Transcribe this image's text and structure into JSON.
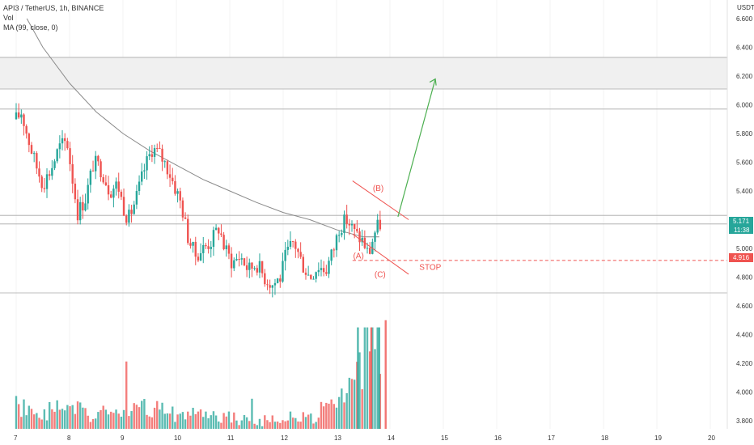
{
  "legend": {
    "symbol": "API3 / TetherUS, 1h, BINANCE",
    "vol": "Vol",
    "ma": "MA (99, close, 0)"
  },
  "axis": {
    "currency": "USDT",
    "last_price": "5.171",
    "countdown": "11:38",
    "stop_price": "4.916"
  },
  "annotations": {
    "wave_a": "(A)",
    "wave_b": "(B)",
    "wave_c": "(C)",
    "stop": "STOP"
  },
  "colors": {
    "up": "#26a69a",
    "down": "#ef5350",
    "ma": "#8a8a8a",
    "arrow": "#4caf50",
    "stop": "#ef5350"
  },
  "chart_data": {
    "type": "candlestick",
    "title": "API3 / TetherUS, 1h, BINANCE",
    "xlabel": "",
    "ylabel": "",
    "ylim": [
      3.7,
      6.7
    ],
    "y_ticks": [
      "6.600",
      "6.400",
      "6.200",
      "6.000",
      "5.800",
      "5.600",
      "5.400",
      "5.200",
      "5.000",
      "4.800",
      "4.600",
      "4.400",
      "4.200",
      "4.000",
      "3.800"
    ],
    "x_ticks": [
      "7",
      "8",
      "9",
      "10",
      "11",
      "12",
      "13",
      "14",
      "15",
      "16",
      "17",
      "18",
      "19",
      "20"
    ],
    "price_path": [
      [
        7.0,
        5.9
      ],
      [
        7.1,
        5.95
      ],
      [
        7.2,
        5.8
      ],
      [
        7.35,
        5.6
      ],
      [
        7.5,
        5.45
      ],
      [
        7.65,
        5.55
      ],
      [
        7.8,
        5.7
      ],
      [
        7.95,
        5.75
      ],
      [
        8.05,
        5.5
      ],
      [
        8.15,
        5.25
      ],
      [
        8.3,
        5.35
      ],
      [
        8.45,
        5.6
      ],
      [
        8.6,
        5.55
      ],
      [
        8.75,
        5.4
      ],
      [
        8.9,
        5.45
      ],
      [
        9.0,
        5.3
      ],
      [
        9.1,
        5.2
      ],
      [
        9.25,
        5.35
      ],
      [
        9.4,
        5.55
      ],
      [
        9.55,
        5.7
      ],
      [
        9.7,
        5.65
      ],
      [
        9.85,
        5.55
      ],
      [
        10.0,
        5.4
      ],
      [
        10.1,
        5.3
      ],
      [
        10.2,
        5.1
      ],
      [
        10.35,
        4.95
      ],
      [
        10.5,
        5.0
      ],
      [
        10.65,
        5.05
      ],
      [
        10.8,
        5.15
      ],
      [
        10.9,
        5.0
      ],
      [
        11.05,
        4.9
      ],
      [
        11.2,
        4.95
      ],
      [
        11.35,
        4.85
      ],
      [
        11.5,
        4.9
      ],
      [
        11.65,
        4.8
      ],
      [
        11.8,
        4.75
      ],
      [
        11.95,
        4.8
      ],
      [
        12.05,
        4.95
      ],
      [
        12.2,
        5.05
      ],
      [
        12.35,
        4.9
      ],
      [
        12.5,
        4.8
      ],
      [
        12.65,
        4.88
      ],
      [
        12.8,
        4.85
      ],
      [
        12.95,
        5.0
      ],
      [
        13.05,
        5.15
      ],
      [
        13.2,
        5.2
      ],
      [
        13.35,
        5.1
      ],
      [
        13.5,
        5.05
      ],
      [
        13.6,
        4.95
      ],
      [
        13.7,
        5.1
      ],
      [
        13.8,
        5.17
      ]
    ],
    "ma99": [
      [
        7.2,
        6.6
      ],
      [
        7.5,
        6.4
      ],
      [
        8.0,
        6.15
      ],
      [
        8.5,
        5.95
      ],
      [
        9.0,
        5.8
      ],
      [
        9.5,
        5.68
      ],
      [
        10.0,
        5.58
      ],
      [
        10.5,
        5.48
      ],
      [
        11.0,
        5.4
      ],
      [
        11.5,
        5.32
      ],
      [
        12.0,
        5.25
      ],
      [
        12.5,
        5.2
      ],
      [
        13.0,
        5.13
      ],
      [
        13.5,
        5.08
      ],
      [
        13.8,
        5.08
      ]
    ],
    "volume_path": [
      [
        7.0,
        1.0
      ],
      [
        7.5,
        0.8
      ],
      [
        8.0,
        0.9
      ],
      [
        8.5,
        0.7
      ],
      [
        9.0,
        0.8
      ],
      [
        9.5,
        0.9
      ],
      [
        10.0,
        0.7
      ],
      [
        10.5,
        0.6
      ],
      [
        11.0,
        0.6
      ],
      [
        11.5,
        0.5
      ],
      [
        12.0,
        0.55
      ],
      [
        12.5,
        0.6
      ],
      [
        13.0,
        1.0
      ],
      [
        13.3,
        1.6
      ],
      [
        13.5,
        2.4
      ],
      [
        13.7,
        3.6
      ],
      [
        13.8,
        3.2
      ]
    ],
    "volume_spikes": [
      [
        13.4,
        4.45
      ],
      [
        13.65,
        4.45
      ],
      [
        13.8,
        4.45
      ],
      [
        13.92,
        4.5
      ]
    ],
    "horizontal_levels": [
      6.33,
      6.11,
      5.97,
      5.23,
      5.17,
      4.69
    ],
    "resistance_zone": [
      6.11,
      6.33
    ],
    "stop_level": 4.916,
    "target_arrow": {
      "from": [
        14.15,
        5.22
      ],
      "to": [
        14.85,
        6.18
      ]
    }
  }
}
